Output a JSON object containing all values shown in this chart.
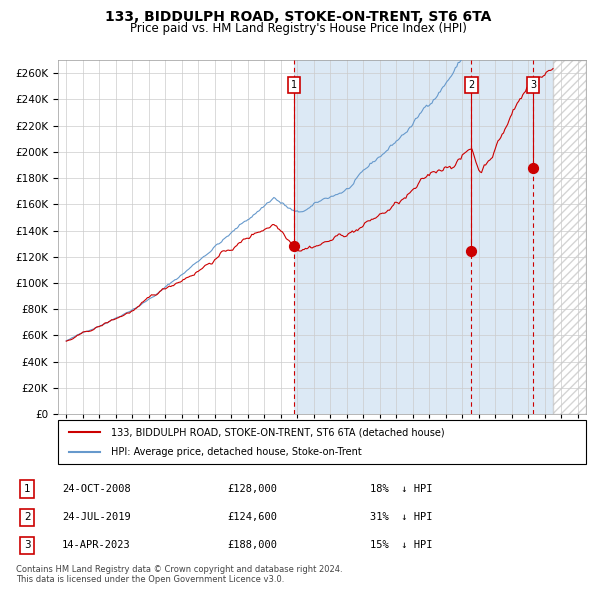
{
  "title": "133, BIDDULPH ROAD, STOKE-ON-TRENT, ST6 6TA",
  "subtitle": "Price paid vs. HM Land Registry's House Price Index (HPI)",
  "legend_label_red": "133, BIDDULPH ROAD, STOKE-ON-TRENT, ST6 6TA (detached house)",
  "legend_label_blue": "HPI: Average price, detached house, Stoke-on-Trent",
  "footer": "Contains HM Land Registry data © Crown copyright and database right 2024.\nThis data is licensed under the Open Government Licence v3.0.",
  "transactions": [
    {
      "num": 1,
      "date": "24-OCT-2008",
      "price": 128000,
      "pct": "18%",
      "dir": "↓",
      "x_year": 2008.82
    },
    {
      "num": 2,
      "date": "24-JUL-2019",
      "price": 124600,
      "pct": "31%",
      "dir": "↓",
      "x_year": 2019.56
    },
    {
      "num": 3,
      "date": "14-APR-2023",
      "price": 188000,
      "pct": "15%",
      "dir": "↓",
      "x_year": 2023.29
    }
  ],
  "ylim": [
    0,
    270000
  ],
  "yticks": [
    0,
    20000,
    40000,
    60000,
    80000,
    100000,
    120000,
    140000,
    160000,
    180000,
    200000,
    220000,
    240000,
    260000
  ],
  "xlim_start": 1994.5,
  "xlim_end": 2026.5,
  "bg_fill_start": 2008.82,
  "bg_fill_color": "#dce9f5",
  "hatch_start": 2024.5,
  "grid_color": "#cccccc",
  "red_color": "#cc0000",
  "blue_color": "#6699cc"
}
